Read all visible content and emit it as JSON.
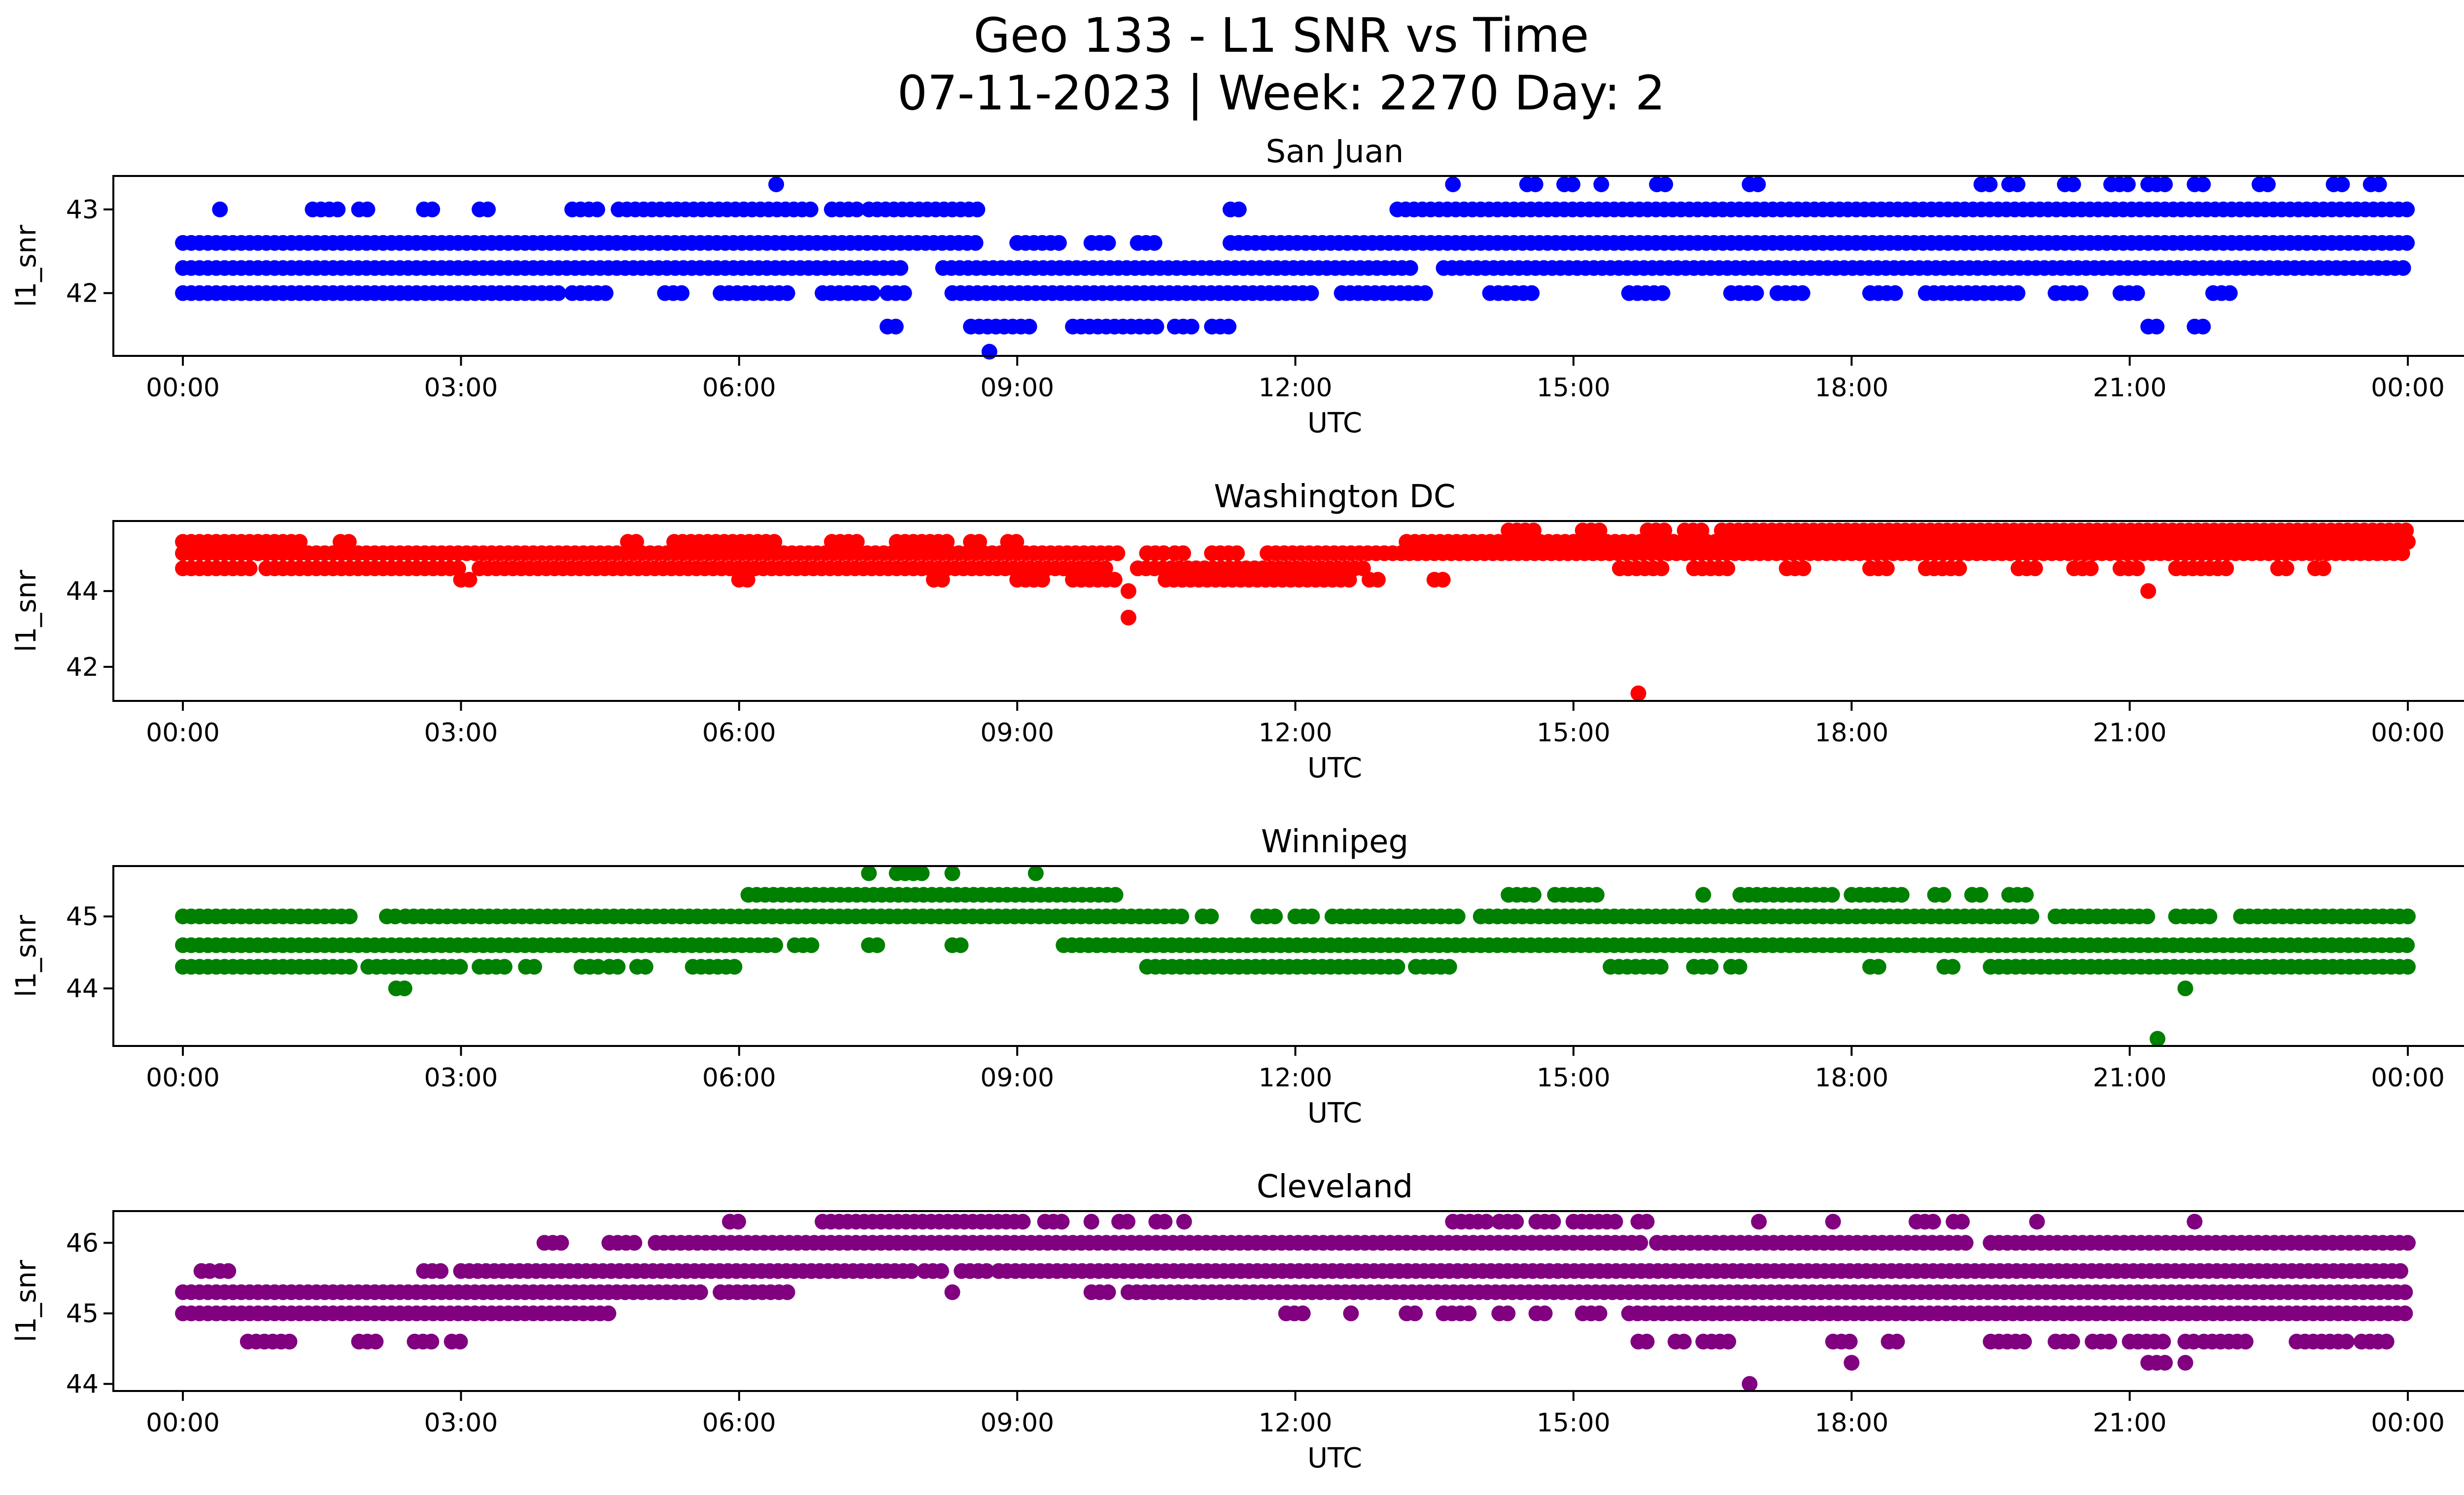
{
  "figure": {
    "title_line1": "Geo 133 - L1 SNR vs Time",
    "title_line2": "07-11-2023 | Week: 2270 Day: 2"
  },
  "chart_data": [
    {
      "type": "scatter",
      "title": "San Juan",
      "xlabel": "UTC",
      "ylabel": "l1_snr",
      "color": "#0000ff",
      "xlim": [
        -0.75,
        25.6
      ],
      "ylim": [
        41.25,
        43.4
      ],
      "x_ticks": [
        "00:00",
        "03:00",
        "06:00",
        "09:00",
        "12:00",
        "15:00",
        "18:00",
        "21:00",
        "00:00"
      ],
      "y_ticks": [
        42,
        43
      ],
      "x_unit": "hours UTC",
      "series": [
        {
          "values_y": 42.0,
          "x": [
            [
              0,
              4.1
            ],
            [
              4.2,
              4.6
            ],
            [
              5.2,
              5.4
            ],
            [
              5.8,
              6.6
            ],
            [
              6.9,
              7.5
            ],
            [
              7.6,
              7.8
            ],
            [
              8.3,
              12.2
            ],
            [
              12.5,
              13.4
            ],
            [
              14.1,
              14.6
            ],
            [
              15.6,
              16.0
            ],
            [
              16.7,
              17.0
            ],
            [
              17.2,
              17.5
            ],
            [
              18.2,
              18.5
            ],
            [
              18.8,
              19.8
            ],
            [
              20.2,
              20.5
            ],
            [
              20.9,
              21.1
            ],
            [
              21.9,
              22.1
            ]
          ]
        },
        {
          "values_y": 42.3,
          "x": [
            [
              0,
              7.8
            ],
            [
              8.2,
              13.3
            ],
            [
              13.6,
              24
            ]
          ]
        },
        {
          "values_y": 42.6,
          "x": [
            [
              0,
              8.6
            ],
            [
              9.0,
              9.5
            ],
            [
              9.8,
              10.0
            ],
            [
              10.3,
              10.5
            ],
            [
              11.3,
              24
            ]
          ]
        },
        {
          "values_y": 43.0,
          "x": [
            [
              0.4,
              0.45
            ],
            [
              1.4,
              1.7
            ],
            [
              1.9,
              2.0
            ],
            [
              2.6,
              2.7
            ],
            [
              3.2,
              3.3
            ],
            [
              4.2,
              4.5
            ],
            [
              4.7,
              6.8
            ],
            [
              7.0,
              7.3
            ],
            [
              7.4,
              8.6
            ],
            [
              11.3,
              11.4
            ],
            [
              13.1,
              24
            ]
          ]
        },
        {
          "values_y": 41.6,
          "x": [
            [
              7.6,
              7.7
            ],
            [
              8.5,
              9.2
            ],
            [
              9.6,
              10.5
            ],
            [
              10.7,
              10.9
            ],
            [
              11.1,
              11.3
            ],
            [
              21.2,
              21.3
            ],
            [
              21.7,
              21.8
            ]
          ]
        },
        {
          "values_y": 43.3,
          "x": [
            [
              6.4,
              6.45
            ],
            [
              13.7,
              13.75
            ],
            [
              14.5,
              14.6
            ],
            [
              14.9,
              15.0
            ],
            [
              15.3,
              15.35
            ],
            [
              15.9,
              16.0
            ],
            [
              16.9,
              17.0
            ],
            [
              19.4,
              19.5
            ],
            [
              19.7,
              19.8
            ],
            [
              20.3,
              20.4
            ],
            [
              20.8,
              21.0
            ],
            [
              21.2,
              21.4
            ],
            [
              21.7,
              21.8
            ],
            [
              22.4,
              22.5
            ],
            [
              23.2,
              23.3
            ],
            [
              23.6,
              23.7
            ]
          ]
        },
        {
          "values_y": 41.3,
          "x": [
            [
              8.7,
              8.75
            ]
          ]
        }
      ]
    },
    {
      "type": "scatter",
      "title": "Washington DC",
      "xlabel": "UTC",
      "ylabel": "l1_snr",
      "color": "#ff0000",
      "xlim": [
        -0.75,
        25.6
      ],
      "ylim": [
        41.1,
        45.85
      ],
      "x_ticks": [
        "00:00",
        "03:00",
        "06:00",
        "09:00",
        "12:00",
        "15:00",
        "18:00",
        "21:00",
        "00:00"
      ],
      "y_ticks": [
        42,
        44
      ],
      "x_unit": "hours UTC",
      "series": [
        {
          "values_y": 44.6,
          "x": [
            [
              0,
              0.8
            ],
            [
              0.9,
              3.0
            ],
            [
              3.2,
              10.0
            ],
            [
              10.3,
              12.8
            ],
            [
              15.5,
              16.0
            ],
            [
              16.3,
              16.7
            ],
            [
              17.3,
              17.5
            ],
            [
              18.2,
              18.4
            ],
            [
              18.8,
              19.2
            ],
            [
              19.8,
              20.0
            ],
            [
              20.4,
              20.6
            ],
            [
              20.9,
              21.1
            ],
            [
              21.5,
              22.1
            ],
            [
              22.6,
              22.7
            ],
            [
              23.0,
              23.1
            ]
          ]
        },
        {
          "values_y": 45.0,
          "x": [
            [
              0,
              10.1
            ],
            [
              10.4,
              10.6
            ],
            [
              10.7,
              10.8
            ],
            [
              11.1,
              11.4
            ],
            [
              11.7,
              24
            ]
          ]
        },
        {
          "values_y": 45.3,
          "x": [
            [
              0,
              1.3
            ],
            [
              1.7,
              1.8
            ],
            [
              4.8,
              4.9
            ],
            [
              5.3,
              6.4
            ],
            [
              7.0,
              7.3
            ],
            [
              7.7,
              8.3
            ],
            [
              8.5,
              8.6
            ],
            [
              8.9,
              9.0
            ],
            [
              13.2,
              24
            ]
          ]
        },
        {
          "values_y": 44.3,
          "x": [
            [
              3.0,
              3.1
            ],
            [
              6.0,
              6.1
            ],
            [
              8.1,
              8.2
            ],
            [
              9.0,
              9.3
            ],
            [
              9.6,
              10.1
            ],
            [
              10.6,
              12.6
            ],
            [
              12.8,
              12.9
            ],
            [
              13.5,
              13.6
            ]
          ]
        },
        {
          "values_y": 45.6,
          "x": [
            [
              14.3,
              14.6
            ],
            [
              15.1,
              15.3
            ],
            [
              15.8,
              16.0
            ],
            [
              16.2,
              16.4
            ],
            [
              16.6,
              24
            ]
          ]
        },
        {
          "values_y": 44.0,
          "x": [
            [
              10.2,
              10.25
            ],
            [
              21.2,
              21.25
            ]
          ]
        },
        {
          "values_y": 43.3,
          "x": [
            [
              10.2,
              10.25
            ]
          ]
        },
        {
          "values_y": 41.3,
          "x": [
            [
              15.7,
              15.75
            ]
          ]
        }
      ]
    },
    {
      "type": "scatter",
      "title": "Winnipeg",
      "xlabel": "UTC",
      "ylabel": "l1_snr",
      "color": "#008000",
      "xlim": [
        -0.75,
        25.6
      ],
      "ylim": [
        43.2,
        45.7
      ],
      "x_ticks": [
        "00:00",
        "03:00",
        "06:00",
        "09:00",
        "12:00",
        "15:00",
        "18:00",
        "21:00",
        "00:00"
      ],
      "y_ticks": [
        44,
        45
      ],
      "x_unit": "hours UTC",
      "series": [
        {
          "values_y": 44.3,
          "x": [
            [
              0,
              1.8
            ],
            [
              2.0,
              3.0
            ],
            [
              3.2,
              3.5
            ],
            [
              3.7,
              3.8
            ],
            [
              4.3,
              4.5
            ],
            [
              4.6,
              4.7
            ],
            [
              4.9,
              5.0
            ],
            [
              5.5,
              6.0
            ],
            [
              10.4,
              13.1
            ],
            [
              13.3,
              13.7
            ],
            [
              15.4,
              16.0
            ],
            [
              16.3,
              16.5
            ],
            [
              16.7,
              16.8
            ],
            [
              18.2,
              18.3
            ],
            [
              19.0,
              19.1
            ],
            [
              19.5,
              24
            ]
          ]
        },
        {
          "values_y": 44.6,
          "x": [
            [
              0,
              6.4
            ],
            [
              6.6,
              6.8
            ],
            [
              7.4,
              7.5
            ],
            [
              8.3,
              8.4
            ],
            [
              9.5,
              24
            ]
          ]
        },
        {
          "values_y": 45.0,
          "x": [
            [
              0,
              1.8
            ],
            [
              2.2,
              2.3
            ],
            [
              2.4,
              10.8
            ],
            [
              11.0,
              11.1
            ],
            [
              11.6,
              11.8
            ],
            [
              12.0,
              12.2
            ],
            [
              12.4,
              13.8
            ],
            [
              14.0,
              20.0
            ],
            [
              20.2,
              21.2
            ],
            [
              21.5,
              21.9
            ],
            [
              22.2,
              24
            ]
          ]
        },
        {
          "values_y": 45.3,
          "x": [
            [
              6.1,
              10.1
            ],
            [
              14.3,
              14.6
            ],
            [
              14.8,
              15.3
            ],
            [
              16.4,
              16.45
            ],
            [
              16.8,
              17.8
            ],
            [
              18.0,
              18.6
            ],
            [
              18.9,
              19.0
            ],
            [
              19.3,
              19.4
            ],
            [
              19.7,
              19.9
            ]
          ]
        },
        {
          "values_y": 45.6,
          "x": [
            [
              7.4,
              7.45
            ],
            [
              7.7,
              8.0
            ],
            [
              8.3,
              8.35
            ],
            [
              9.2,
              9.25
            ]
          ]
        },
        {
          "values_y": 44.0,
          "x": [
            [
              2.3,
              2.4
            ],
            [
              21.6,
              21.65
            ]
          ]
        },
        {
          "values_y": 43.3,
          "x": [
            [
              21.3,
              21.35
            ]
          ]
        }
      ]
    },
    {
      "type": "scatter",
      "title": "Cleveland",
      "xlabel": "UTC",
      "ylabel": "l1_snr",
      "color": "#800080",
      "xlim": [
        -0.75,
        25.6
      ],
      "ylim": [
        43.9,
        46.45
      ],
      "x_ticks": [
        "00:00",
        "03:00",
        "06:00",
        "09:00",
        "12:00",
        "15:00",
        "18:00",
        "21:00",
        "00:00"
      ],
      "y_ticks": [
        44,
        45,
        46
      ],
      "x_unit": "hours UTC",
      "series": [
        {
          "values_y": 45.0,
          "x": [
            [
              0,
              4.6
            ],
            [
              11.9,
              12.1
            ],
            [
              12.6,
              12.65
            ],
            [
              13.2,
              13.3
            ],
            [
              13.6,
              13.9
            ],
            [
              14.2,
              14.3
            ],
            [
              14.6,
              14.7
            ],
            [
              15.1,
              15.3
            ],
            [
              15.6,
              24
            ]
          ]
        },
        {
          "values_y": 45.3,
          "x": [
            [
              0,
              5.6
            ],
            [
              5.8,
              6.6
            ],
            [
              8.3,
              8.35
            ],
            [
              9.8,
              10.0
            ],
            [
              10.2,
              24
            ]
          ]
        },
        {
          "values_y": 45.6,
          "x": [
            [
              0.2,
              0.3
            ],
            [
              0.4,
              0.5
            ],
            [
              2.6,
              2.8
            ],
            [
              3.0,
              7.9
            ],
            [
              8.0,
              8.2
            ],
            [
              8.4,
              8.7
            ],
            [
              8.8,
              24
            ]
          ]
        },
        {
          "values_y": 46.0,
          "x": [
            [
              3.9,
              4.1
            ],
            [
              4.6,
              4.9
            ],
            [
              5.1,
              15.8
            ],
            [
              15.9,
              19.3
            ],
            [
              19.5,
              24
            ]
          ]
        },
        {
          "values_y": 46.3,
          "x": [
            [
              5.9,
              6.0
            ],
            [
              6.9,
              9.1
            ],
            [
              9.3,
              9.5
            ],
            [
              9.8,
              9.85
            ],
            [
              10.1,
              10.2
            ],
            [
              10.5,
              10.6
            ],
            [
              10.8,
              10.85
            ],
            [
              13.7,
              14.1
            ],
            [
              14.2,
              14.4
            ],
            [
              14.6,
              14.8
            ],
            [
              15.0,
              15.5
            ],
            [
              15.7,
              15.8
            ],
            [
              17.0,
              17.05
            ],
            [
              17.8,
              17.85
            ],
            [
              18.7,
              18.9
            ],
            [
              19.1,
              19.2
            ],
            [
              20.0,
              20.05
            ],
            [
              21.7,
              21.75
            ]
          ]
        },
        {
          "values_y": 44.6,
          "x": [
            [
              0.7,
              1.2
            ],
            [
              1.9,
              2.1
            ],
            [
              2.5,
              2.7
            ],
            [
              2.9,
              3.0
            ],
            [
              15.7,
              15.8
            ],
            [
              16.1,
              16.2
            ],
            [
              16.4,
              16.7
            ],
            [
              17.8,
              18.0
            ],
            [
              18.4,
              18.5
            ],
            [
              19.5,
              19.9
            ],
            [
              20.2,
              20.4
            ],
            [
              20.6,
              20.8
            ],
            [
              21.0,
              21.4
            ],
            [
              21.6,
              21.7
            ],
            [
              21.8,
              22.3
            ],
            [
              22.8,
              23.4
            ],
            [
              23.5,
              23.8
            ]
          ]
        },
        {
          "values_y": 44.3,
          "x": [
            [
              18.0,
              18.05
            ],
            [
              21.2,
              21.4
            ],
            [
              21.6,
              21.65
            ]
          ]
        },
        {
          "values_y": 44.0,
          "x": [
            [
              16.9,
              16.95
            ]
          ]
        }
      ]
    }
  ]
}
